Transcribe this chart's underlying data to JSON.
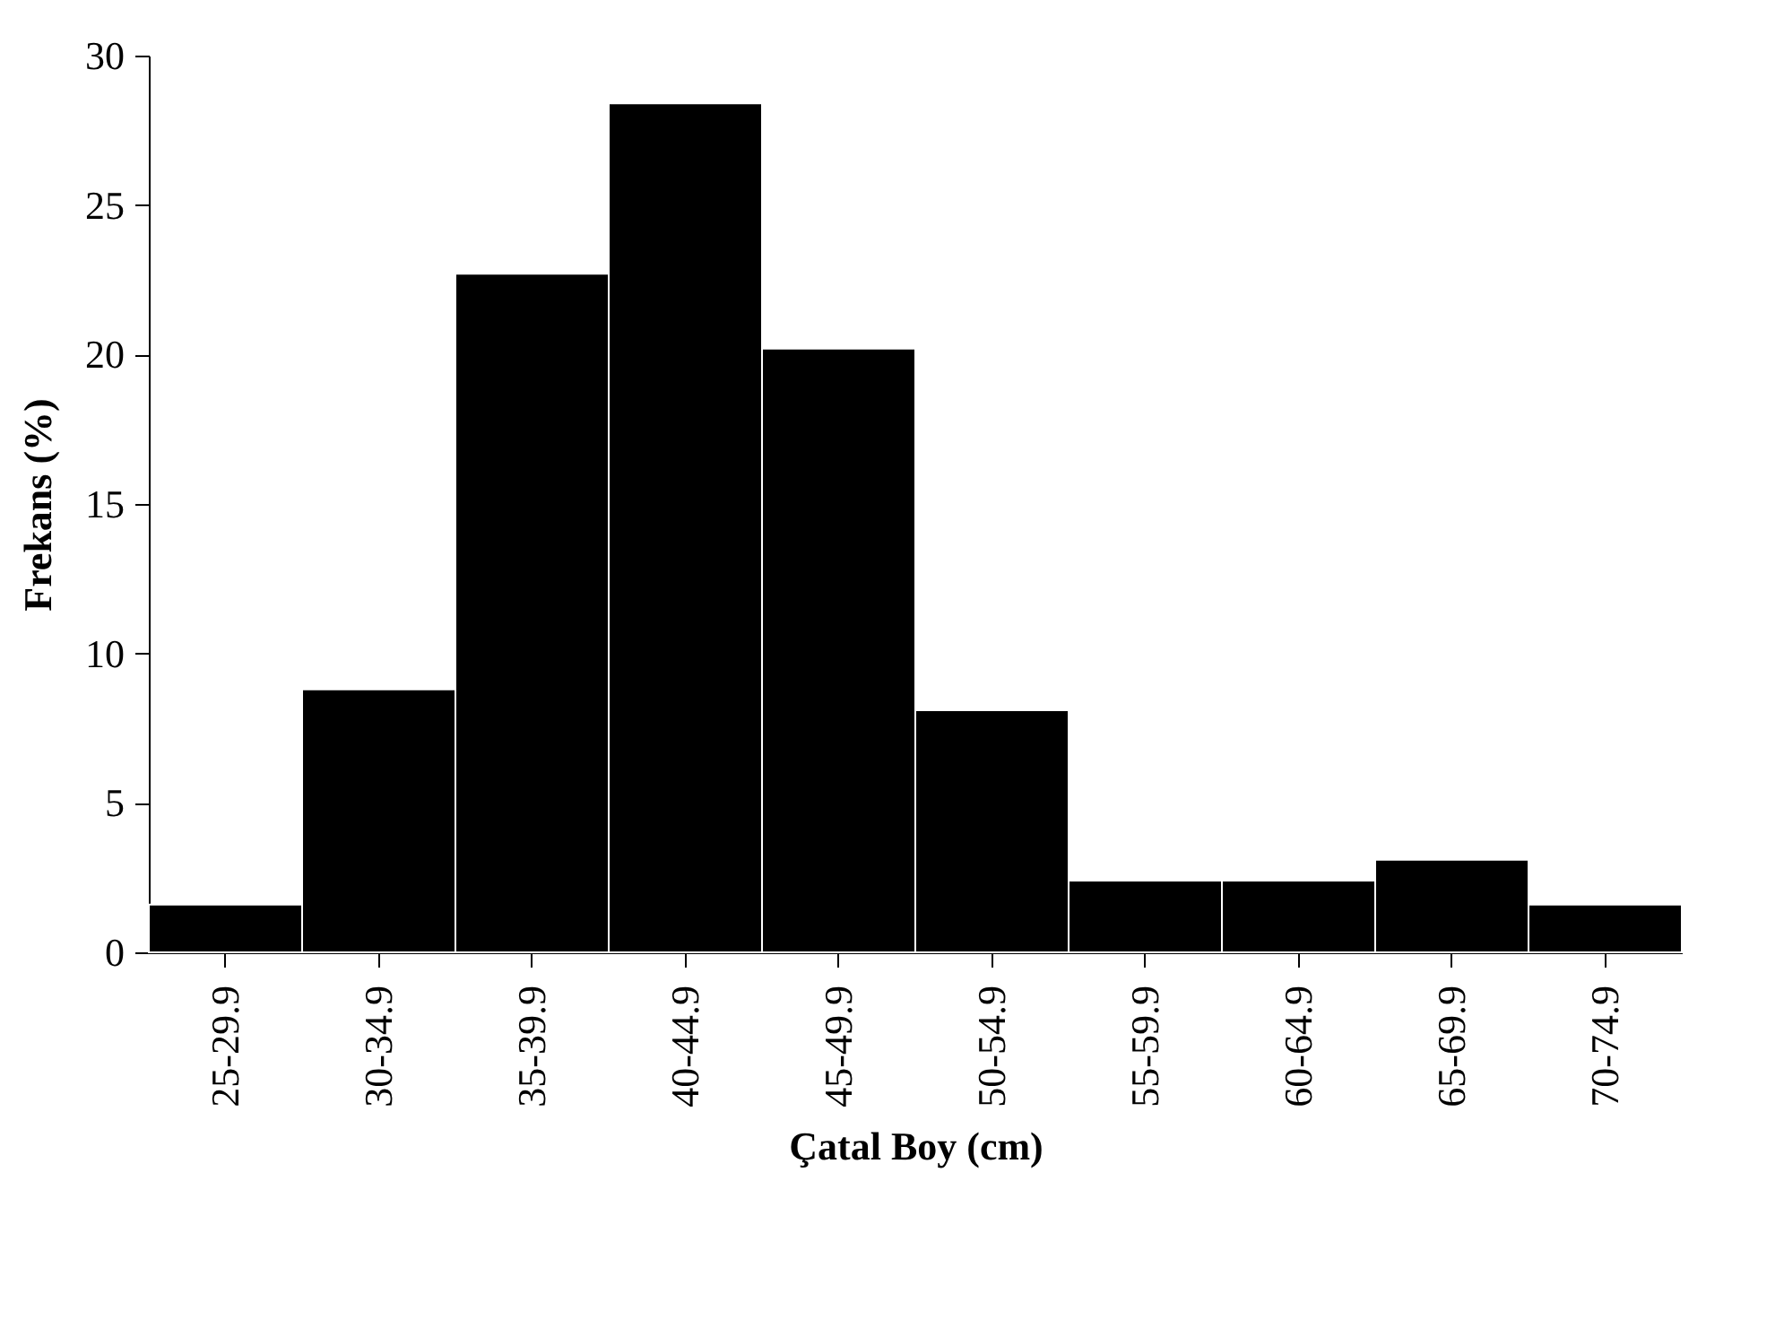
{
  "chart_data": {
    "type": "bar",
    "xlabel": "Çatal Boy (cm)",
    "ylabel": "Frekans (%)",
    "categories": [
      "25-29.9",
      "30-34.9",
      "35-39.9",
      "40-44.9",
      "45-49.9",
      "50-54.9",
      "55-59.9",
      "60-64.9",
      "65-69.9",
      "70-74.9"
    ],
    "values": [
      1.6,
      8.8,
      22.7,
      28.4,
      20.2,
      8.1,
      2.4,
      2.4,
      3.1,
      1.6
    ],
    "color": "#000000",
    "ylim": [
      0,
      30
    ],
    "yticks": [
      0,
      5,
      10,
      15,
      20,
      25,
      30
    ],
    "grid": false
  }
}
